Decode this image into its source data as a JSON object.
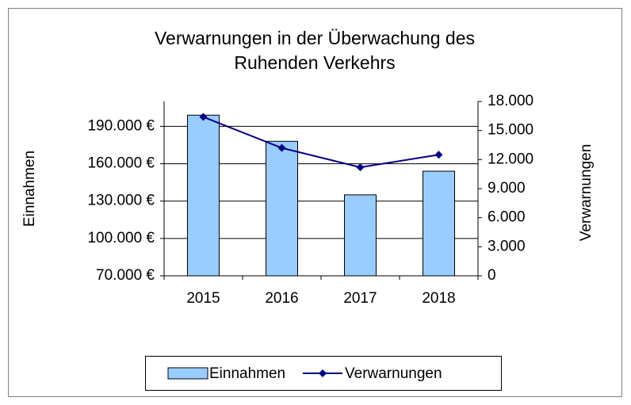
{
  "chart_data": {
    "type": "bar_line",
    "title": [
      "Verwarnungen in der Überwachung des",
      "Ruhenden Verkehrs"
    ],
    "y_label": "Einnahmen",
    "y2_label": "Verwarnungen",
    "categories": [
      "2015",
      "2016",
      "2017",
      "2018"
    ],
    "series": [
      {
        "name": "Einnahmen",
        "type": "bar",
        "color": "#99ccff",
        "values": [
          199000,
          178000,
          135000,
          154000
        ]
      },
      {
        "name": "Verwarnungen",
        "type": "line",
        "axis": "y2",
        "color": "#000080",
        "values": [
          16400,
          13200,
          11200,
          12500
        ]
      }
    ],
    "ylim": [
      70000,
      210000
    ],
    "yticks": [
      {
        "value": 70000,
        "label": "70.000 €"
      },
      {
        "value": 100000,
        "label": "100.000 €"
      },
      {
        "value": 130000,
        "label": "130.000 €"
      },
      {
        "value": 160000,
        "label": "160.000 €"
      },
      {
        "value": 190000,
        "label": "190.000 €"
      }
    ],
    "y2lim": [
      0,
      18000
    ],
    "y2ticks": [
      0,
      {
        "value": 3000,
        "label": "3.000"
      },
      {
        "value": 6000,
        "label": "6.000"
      },
      {
        "value": 9000,
        "label": "9.000"
      },
      {
        "value": 12000,
        "label": "12.000"
      },
      {
        "value": 15000,
        "label": "15.000"
      },
      {
        "value": 18000,
        "label": "18.000"
      }
    ],
    "grid": true,
    "legend": "bottom"
  }
}
